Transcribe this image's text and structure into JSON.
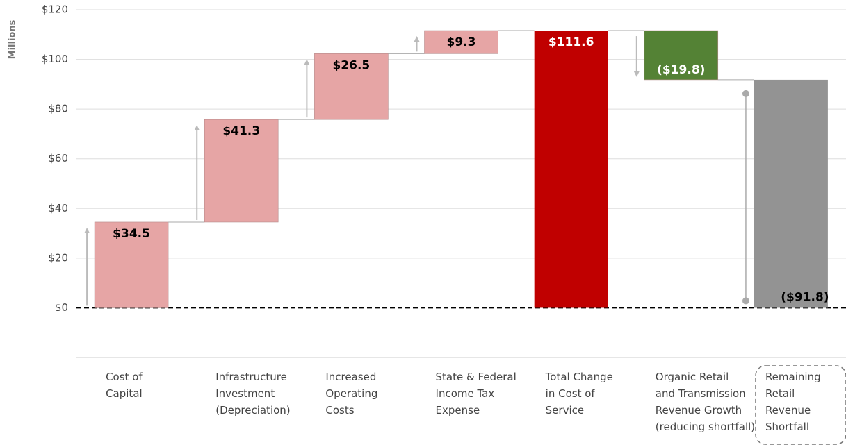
{
  "chart_data": {
    "type": "waterfall",
    "y_axis_label": "Millions",
    "categories": [
      "Cost of\nCapital",
      "Infrastructure\nInvestment\n(Depreciation)",
      "Increased\nOperating\nCosts",
      "State & Federal\nIncome Tax\nExpense",
      "Total Change\nin Cost of\nService",
      "Organic Retail\nand Transmission\nRevenue Growth\n(reducing shortfall)",
      "Remaining\nRetail\nRevenue\nShortfall"
    ],
    "measures": [
      "relative",
      "relative",
      "relative",
      "relative",
      "total",
      "relative",
      "total"
    ],
    "values": [
      34.5,
      41.3,
      26.5,
      9.3,
      111.6,
      -19.8,
      91.8
    ],
    "value_labels": [
      "$34.5",
      "$41.3",
      "$26.5",
      "$9.3",
      "$111.6",
      "($19.8)",
      "($91.8)"
    ],
    "colors": [
      "#e6a5a5",
      "#e6a5a5",
      "#e6a5a5",
      "#e6a5a5",
      "#c00000",
      "#548235",
      "#939393"
    ],
    "ylim": [
      -20,
      120
    ],
    "yticks": [
      {
        "value": 0,
        "label": "$0"
      },
      {
        "value": 20,
        "label": "$20"
      },
      {
        "value": 40,
        "label": "$40"
      },
      {
        "value": 60,
        "label": "$60"
      },
      {
        "value": 80,
        "label": "$80"
      },
      {
        "value": 100,
        "label": "$100"
      },
      {
        "value": 120,
        "label": "$120"
      }
    ],
    "grid": true
  }
}
